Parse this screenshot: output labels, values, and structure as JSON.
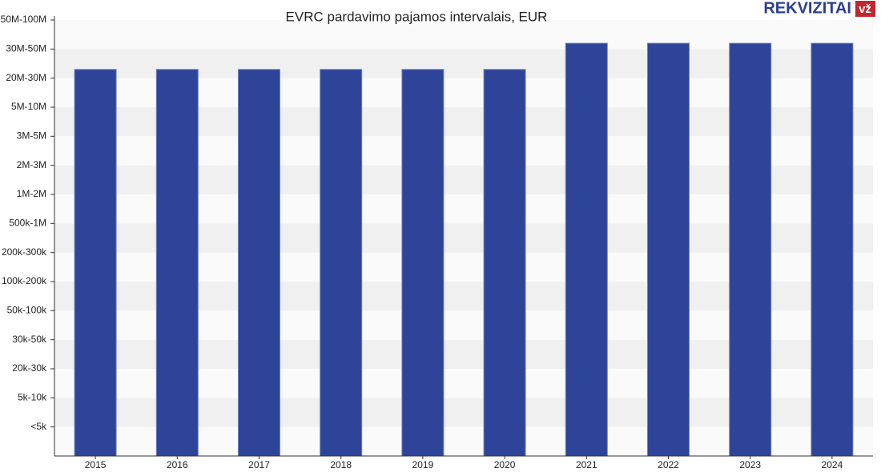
{
  "chart_data": {
    "type": "bar",
    "title": "EVRC pardavimo pajamos intervalais, EUR",
    "logo": "REKVIZITAI",
    "logo_mark": "vž",
    "categories": [
      "2015",
      "2016",
      "2017",
      "2018",
      "2019",
      "2020",
      "2021",
      "2022",
      "2023",
      "2024"
    ],
    "values": [
      13.3,
      13.3,
      13.3,
      13.3,
      13.3,
      13.3,
      14.2,
      14.2,
      14.2,
      14.2
    ],
    "color": "#2e4499",
    "ylim": [
      0,
      15
    ],
    "yticks": [
      {
        "value": 1,
        "label": "<5k"
      },
      {
        "value": 2,
        "label": "5k-10k"
      },
      {
        "value": 3,
        "label": "20k-30k"
      },
      {
        "value": 4,
        "label": "30k-50k"
      },
      {
        "value": 5,
        "label": "50k-100k"
      },
      {
        "value": 6,
        "label": "100k-200k"
      },
      {
        "value": 7,
        "label": "200k-300k"
      },
      {
        "value": 8,
        "label": "500k-1M"
      },
      {
        "value": 9,
        "label": "1M-2M"
      },
      {
        "value": 10,
        "label": "2M-3M"
      },
      {
        "value": 11,
        "label": "3M-5M"
      },
      {
        "value": 12,
        "label": "5M-10M"
      },
      {
        "value": 13,
        "label": "20M-30M"
      },
      {
        "value": 14,
        "label": "30M-50M"
      },
      {
        "value": 15,
        "label": "50M-100M"
      }
    ],
    "grid": true
  }
}
